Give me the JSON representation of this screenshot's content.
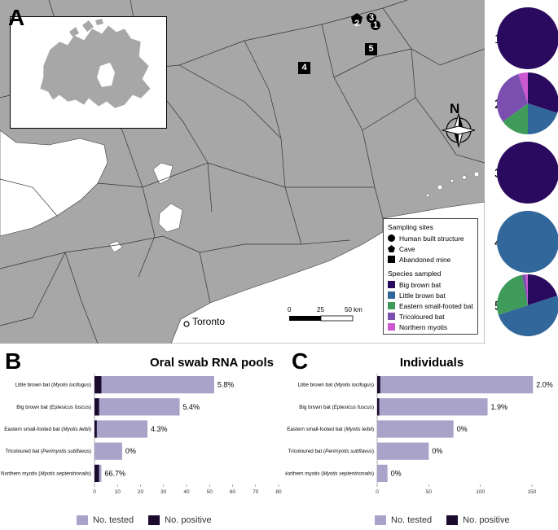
{
  "panels": {
    "a": "A",
    "b": "B",
    "c": "C"
  },
  "map": {
    "city_label": "Toronto",
    "north_label": "N",
    "scale": {
      "labels": [
        "0",
        "25",
        "50 km"
      ]
    },
    "site_numbers": [
      "1",
      "2",
      "3",
      "4",
      "5"
    ],
    "legend": {
      "sites_title": "Sampling sites",
      "site_types": [
        {
          "label": "Human built structure",
          "shape": "circle"
        },
        {
          "label": "Cave",
          "shape": "pentagon"
        },
        {
          "label": "Abandoned mine",
          "shape": "square"
        }
      ],
      "species_title": "Species sampled",
      "species": [
        {
          "label": "Big brown bat",
          "color": "#2a0a5e"
        },
        {
          "label": "Little brown bat",
          "color": "#31679a"
        },
        {
          "label": "Eastern small-footed bat",
          "color": "#3f9b5a"
        },
        {
          "label": "Tricoloured bat",
          "color": "#7b4fb0"
        },
        {
          "label": "Northern myotis",
          "color": "#cc59d2"
        }
      ]
    }
  },
  "pies": {
    "labels": [
      "1",
      "2",
      "3",
      "4",
      "5"
    ],
    "composition": [
      {
        "site": "1",
        "fractions": [
          1,
          0,
          0,
          0,
          0
        ]
      },
      {
        "site": "2",
        "fractions": [
          0.3,
          0.2,
          0.15,
          0.3,
          0.05
        ]
      },
      {
        "site": "3",
        "fractions": [
          1,
          0,
          0,
          0,
          0
        ]
      },
      {
        "site": "4",
        "fractions": [
          0,
          1,
          0,
          0,
          0
        ]
      },
      {
        "site": "5",
        "fractions": [
          0.2,
          0.5,
          0.27,
          0.02,
          0.01
        ]
      }
    ]
  },
  "chart_data": [
    {
      "type": "bar",
      "title": "Oral swab RNA pools",
      "categories": [
        {
          "common": "Little brown bat",
          "latin": "Myotis lucifugus"
        },
        {
          "common": "Big brown bat",
          "latin": "Eptesicus fuscus"
        },
        {
          "common": "Eastern small-footed bat",
          "latin": "Myotis leibii"
        },
        {
          "common": "Tricoloured bat",
          "latin": "Perimyotis subflavus"
        },
        {
          "common": "Northern myotis",
          "latin": "Myotis septentrionalis"
        }
      ],
      "series": [
        {
          "name": "No. tested",
          "color": "#a9a2c9",
          "values": [
            52,
            37,
            23,
            12,
            3
          ]
        },
        {
          "name": "No. positive",
          "color": "#1b0a2e",
          "values": [
            3,
            2,
            1,
            0,
            2
          ]
        }
      ],
      "data_labels": [
        "5.8%",
        "5.4%",
        "4.3%",
        "0%",
        "66.7%"
      ],
      "xlim": [
        0,
        80
      ],
      "xticks": [
        "0",
        "10",
        "20",
        "30",
        "40",
        "50",
        "60",
        "70",
        "80"
      ],
      "legend": "bottom"
    },
    {
      "type": "bar",
      "title": "Individuals",
      "categories": [
        {
          "common": "Little brown bat",
          "latin": "Myotis lucifugus"
        },
        {
          "common": "Big brown bat",
          "latin": "Eptesicus fuscus"
        },
        {
          "common": "Eastern small-footed bat",
          "latin": "Myotis leibii"
        },
        {
          "common": "Tricoloured bat",
          "latin": "Perimyotis subflavus"
        },
        {
          "common": "Northern myotis",
          "latin": "Myotis septentrionalis"
        }
      ],
      "series": [
        {
          "name": "No. tested",
          "color": "#a9a2c9",
          "values": [
            151,
            107,
            74,
            50,
            10
          ]
        },
        {
          "name": "No. positive",
          "color": "#1b0a2e",
          "values": [
            3,
            2,
            0,
            0,
            0
          ]
        }
      ],
      "data_labels": [
        "2.0%",
        "1.9%",
        "0%",
        "0%",
        "0%"
      ],
      "xlim": [
        0,
        150
      ],
      "xticks": [
        "0",
        "50",
        "100",
        "150"
      ],
      "legend": "bottom"
    }
  ]
}
